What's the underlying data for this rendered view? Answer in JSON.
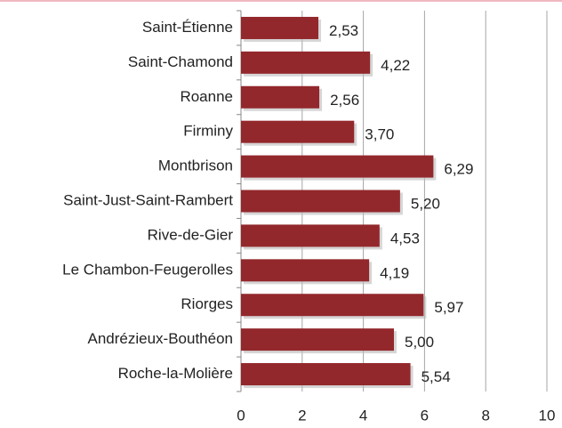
{
  "chart_data": {
    "type": "bar",
    "orientation": "horizontal",
    "categories": [
      "Saint-Étienne",
      "Saint-Chamond",
      "Roanne",
      "Firminy",
      "Montbrison",
      "Saint-Just-Saint-Rambert",
      "Rive-de-Gier",
      "Le Chambon-Feugerolles",
      "Riorges",
      "Andrézieux-Bouthéon",
      "Roche-la-Molière"
    ],
    "values": [
      2.53,
      4.22,
      2.56,
      3.7,
      6.29,
      5.2,
      4.53,
      4.19,
      5.97,
      5.0,
      5.54
    ],
    "value_labels": [
      "2,53",
      "4,22",
      "2,56",
      "3,70",
      "6,29",
      "5,20",
      "4,53",
      "4,19",
      "5,97",
      "5,00",
      "5,54"
    ],
    "color": "#93282c",
    "xlim": [
      0,
      10
    ],
    "xticks": [
      0,
      2,
      4,
      6,
      8,
      10
    ],
    "grid": true
  }
}
